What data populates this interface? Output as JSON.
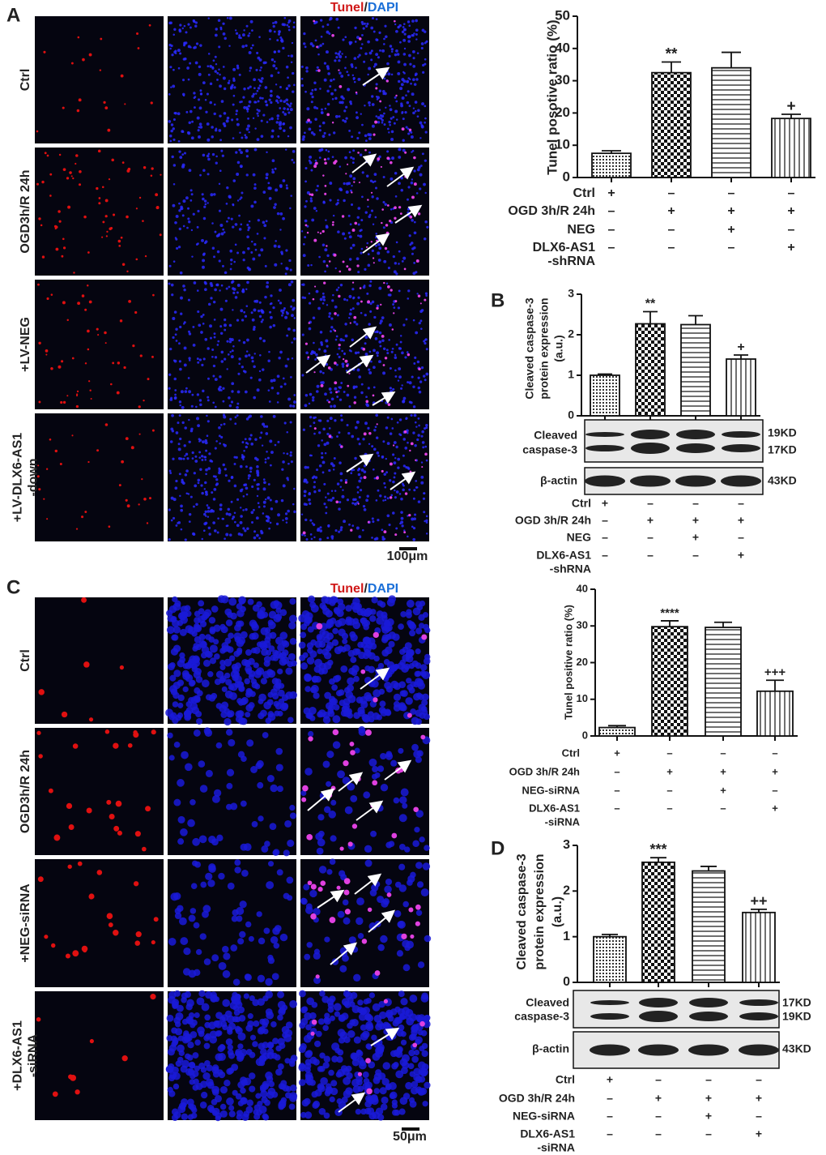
{
  "figure": {
    "panels": [
      "A",
      "B",
      "C",
      "D"
    ],
    "stain": [
      "Tunel",
      "/",
      "DAPI"
    ],
    "rows_a": [
      [
        "Ctrl"
      ],
      [
        "OGD3h/R 24h"
      ],
      [
        "+LV-NEG"
      ],
      [
        "+LV-DLX6-AS1",
        "-down"
      ]
    ],
    "rows_c": [
      [
        "Ctrl"
      ],
      [
        "OGD3h/R 24h"
      ],
      [
        "+NEG-siRNA"
      ],
      [
        "+DLX6-AS1",
        "-siRNA"
      ]
    ],
    "scale_a": "100μm",
    "scale_c": "50μm"
  },
  "chart_data": [
    {
      "type": "bar",
      "ylabel": [
        "Tunel posotive ratio (%)"
      ],
      "categories": [
        null,
        null,
        null,
        null
      ],
      "values": [
        7.5,
        32.5,
        34,
        18.3
      ],
      "errors": [
        0.8,
        3.3,
        4.8,
        1.3
      ],
      "significance": [
        null,
        "**",
        null,
        "+"
      ],
      "ylim": [
        0,
        50
      ],
      "yticks": [
        0,
        10,
        20,
        30,
        40,
        50
      ],
      "treatments": [
        {
          "label": [
            "Ctrl"
          ],
          "signs": [
            "+",
            "–",
            "–",
            "–"
          ]
        },
        {
          "label": [
            "OGD 3h/R 24h"
          ],
          "signs": [
            "–",
            "+",
            "+",
            "+"
          ]
        },
        {
          "label": [
            "NEG"
          ],
          "signs": [
            "–",
            "–",
            "+",
            "–"
          ]
        },
        {
          "label": [
            "DLX6-AS1",
            "-shRNA"
          ],
          "signs": [
            "–",
            "–",
            "–",
            "+"
          ]
        }
      ]
    },
    {
      "type": "bar",
      "ylabel": [
        "Cleaved caspase-3",
        "protein expression",
        "(a.u.)"
      ],
      "categories": [
        null,
        null,
        null,
        null
      ],
      "values": [
        1,
        2.27,
        2.25,
        1.4
      ],
      "errors": [
        0.03,
        0.3,
        0.22,
        0.1
      ],
      "significance": [
        null,
        "**",
        null,
        "+"
      ],
      "ylim": [
        0,
        3
      ],
      "yticks": [
        0,
        1,
        2,
        3
      ],
      "blot": {
        "target": [
          "Cleaved",
          "caspase-3"
        ],
        "sizes": [
          "19KD",
          "17KD"
        ],
        "control": "β-actin",
        "control_size": "43KD"
      },
      "treatments": [
        {
          "label": [
            "Ctrl"
          ],
          "signs": [
            "+",
            "–",
            "–",
            "–"
          ]
        },
        {
          "label": [
            "OGD 3h/R 24h"
          ],
          "signs": [
            "–",
            "+",
            "+",
            "+"
          ]
        },
        {
          "label": [
            "NEG"
          ],
          "signs": [
            "–",
            "–",
            "+",
            "–"
          ]
        },
        {
          "label": [
            "DLX6-AS1",
            "-shRNA"
          ],
          "signs": [
            "–",
            "–",
            "–",
            "+"
          ]
        }
      ]
    },
    {
      "type": "bar",
      "ylabel": [
        "Tunel positive ratio (%)"
      ],
      "categories": [
        null,
        null,
        null,
        null
      ],
      "values": [
        2.3,
        29.8,
        29.6,
        12.2
      ],
      "errors": [
        0.5,
        1.6,
        1.4,
        3
      ],
      "significance": [
        null,
        "****",
        null,
        "+++"
      ],
      "ylim": [
        0,
        40
      ],
      "yticks": [
        0,
        10,
        20,
        30,
        40
      ],
      "treatments": [
        {
          "label": [
            "Ctrl"
          ],
          "signs": [
            "+",
            "–",
            "–",
            "–"
          ]
        },
        {
          "label": [
            "OGD 3h/R 24h"
          ],
          "signs": [
            "–",
            "+",
            "+",
            "+"
          ]
        },
        {
          "label": [
            "NEG-siRNA"
          ],
          "signs": [
            "–",
            "–",
            "+",
            "–"
          ]
        },
        {
          "label": [
            "DLX6-AS1",
            "-siRNA"
          ],
          "signs": [
            "–",
            "–",
            "–",
            "+"
          ]
        }
      ]
    },
    {
      "type": "bar",
      "ylabel": [
        "Cleaved caspase-3",
        "protein expression",
        "(a.u.)"
      ],
      "categories": [
        null,
        null,
        null,
        null
      ],
      "values": [
        1,
        2.63,
        2.44,
        1.53
      ],
      "errors": [
        0.05,
        0.1,
        0.1,
        0.07
      ],
      "significance": [
        null,
        "***",
        null,
        "++"
      ],
      "ylim": [
        0,
        3
      ],
      "yticks": [
        0,
        1,
        2,
        3
      ],
      "blot": {
        "target": [
          "Cleaved",
          "caspase-3"
        ],
        "sizes": [
          "17KD",
          "19KD"
        ],
        "control": "β-actin",
        "control_size": "43KD"
      },
      "treatments": [
        {
          "label": [
            "Ctrl"
          ],
          "signs": [
            "+",
            "–",
            "–",
            "–"
          ]
        },
        {
          "label": [
            "OGD 3h/R 24h"
          ],
          "signs": [
            "–",
            "+",
            "+",
            "+"
          ]
        },
        {
          "label": [
            "NEG-siRNA"
          ],
          "signs": [
            "–",
            "–",
            "+",
            "–"
          ]
        },
        {
          "label": [
            "DLX6-AS1",
            "-siRNA"
          ],
          "signs": [
            "–",
            "–",
            "–",
            "+"
          ]
        }
      ]
    }
  ]
}
